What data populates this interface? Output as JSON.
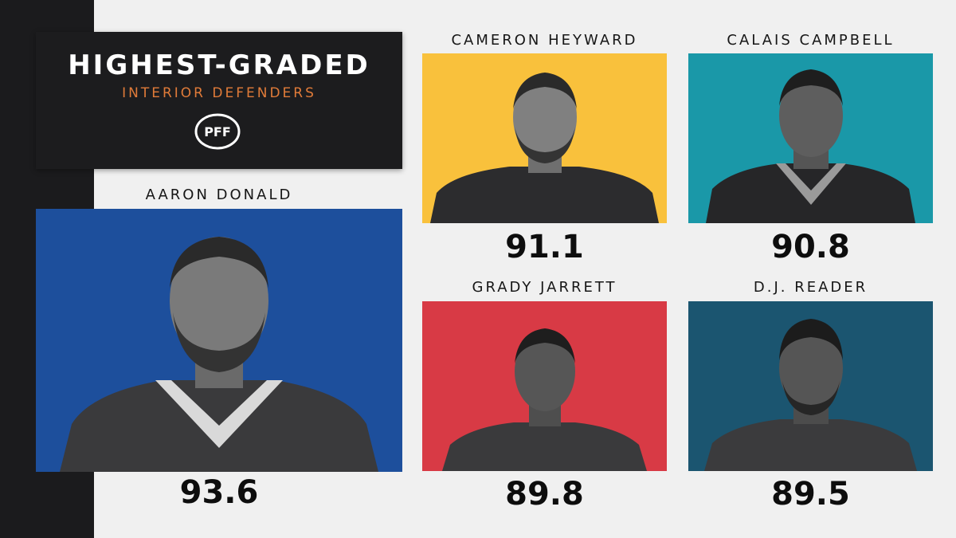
{
  "header": {
    "title": "HIGHEST-GRADED",
    "subtitle": "INTERIOR DEFENDERS",
    "logo_text": "PFF"
  },
  "players": [
    {
      "name": "AARON DONALD",
      "grade": "93.6",
      "bg_color": "#1d4f9c"
    },
    {
      "name": "CAMERON HEYWARD",
      "grade": "91.1",
      "bg_color": "#f9c13c"
    },
    {
      "name": "CALAIS CAMPBELL",
      "grade": "90.8",
      "bg_color": "#1a98a8"
    },
    {
      "name": "GRADY JARRETT",
      "grade": "89.8",
      "bg_color": "#d83a45"
    },
    {
      "name": "D.J. READER",
      "grade": "89.5",
      "bg_color": "#1b5570"
    }
  ],
  "colors": {
    "accent": "#e07b39",
    "background": "#f0f0f0",
    "dark": "#1c1c1e"
  }
}
